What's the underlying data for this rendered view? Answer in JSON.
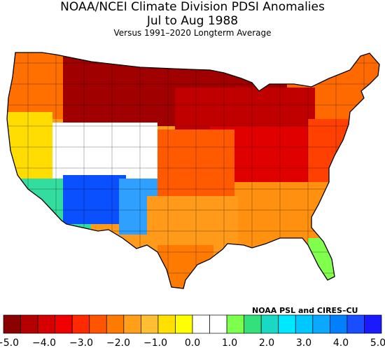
{
  "header": {
    "title_line1": "NOAA/NCEI Climate Division PDSI Anomalies",
    "title_line2": "Jul to Aug 1988",
    "subtitle": "Versus 1991–2020 Longterm Average"
  },
  "credit": "NOAA PSL and CIRES–CU",
  "colorbar": {
    "bins": [
      "#8b0000",
      "#b40000",
      "#d70000",
      "#f00000",
      "#ff2a00",
      "#ff5500",
      "#ff7a00",
      "#ff9f1a",
      "#ffbf33",
      "#ffe000",
      "#ffff00",
      "#ffffff",
      "#ffffff",
      "#7cff4d",
      "#33e07a",
      "#1ad9c4",
      "#00e8ff",
      "#00c8ff",
      "#0aa8ff",
      "#0080ff",
      "#1a4dff",
      "#1a1aff"
    ],
    "tick_labels": [
      "−5.0",
      "−4.0",
      "−3.0",
      "−2.0",
      "−1.0",
      "0.0",
      "1.0",
      "2.0",
      "3.0",
      "4.0",
      "5.0"
    ]
  },
  "regions": [
    {
      "name": "north-central-plains",
      "value": -5.0,
      "color": "#a00000"
    },
    {
      "name": "midwest",
      "value": -4.6,
      "color": "#c00000"
    },
    {
      "name": "ohio-valley",
      "value": -4.2,
      "color": "#e00000"
    },
    {
      "name": "appalachians",
      "value": -3.0,
      "color": "#ff4000"
    },
    {
      "name": "northeast",
      "value": -2.8,
      "color": "#ff6a00"
    },
    {
      "name": "southeast",
      "value": -1.8,
      "color": "#ff9010"
    },
    {
      "name": "florida",
      "value": 1.0,
      "color": "#80ff4d"
    },
    {
      "name": "pacific-northwest",
      "value": -2.6,
      "color": "#ff7000"
    },
    {
      "name": "california",
      "value": -0.8,
      "color": "#ffdd00"
    },
    {
      "name": "great-basin",
      "value": -0.2,
      "color": "#ffffff"
    },
    {
      "name": "southwest",
      "value": 4.6,
      "color": "#0a50ff"
    },
    {
      "name": "new-mexico",
      "value": 3.4,
      "color": "#30a0ff"
    },
    {
      "name": "southern-california",
      "value": 2.0,
      "color": "#33dda0"
    },
    {
      "name": "central-plains",
      "value": -3.2,
      "color": "#ff5a00"
    },
    {
      "name": "texas",
      "value": -1.6,
      "color": "#ff9a1a"
    },
    {
      "name": "south-texas",
      "value": -2.4,
      "color": "#ff7a00"
    }
  ]
}
